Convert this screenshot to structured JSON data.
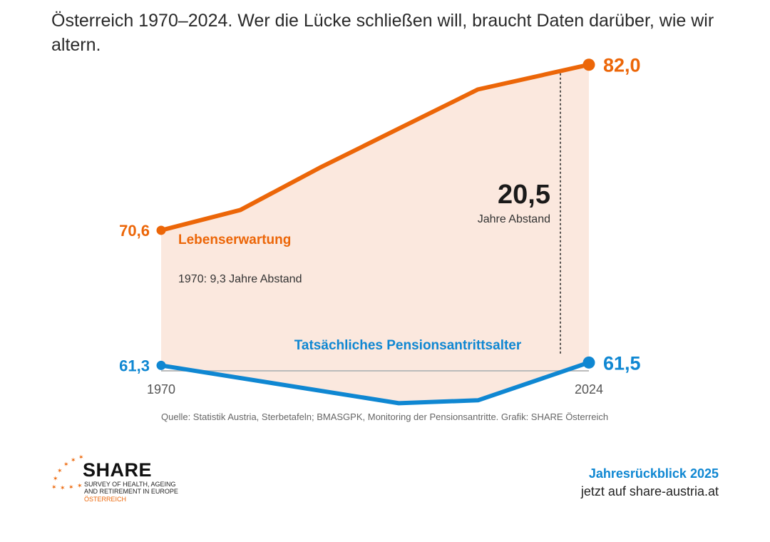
{
  "headline": "Österreich 1970–2024. Wer die Lücke schließen will, braucht Daten darüber, wie wir altern.",
  "chart_data": {
    "type": "line",
    "x_start": 1970,
    "x_end": 2024,
    "ylim": [
      57,
      84
    ],
    "colors": {
      "life": "#ec6608",
      "pension": "#0f87d2",
      "gap_fill": "#fbe8de",
      "axis": "#bbbbbb"
    },
    "series": [
      {
        "key": "life",
        "name": "Lebenserwartung",
        "x": [
          1970,
          1980,
          1990,
          2000,
          2010,
          2024
        ],
        "values": [
          70.6,
          72.0,
          74.9,
          77.6,
          80.3,
          82.0
        ]
      },
      {
        "key": "pension",
        "name": "Tatsächliches Pensionsantrittsalter",
        "x": [
          1970,
          2000,
          2010,
          2024
        ],
        "values": [
          61.3,
          58.7,
          58.9,
          61.5
        ]
      }
    ],
    "end_labels": {
      "life_start": "70,6",
      "life_end": "82,0",
      "pension_start": "61,3",
      "pension_end": "61,5"
    },
    "tick_labels": [
      "1970",
      "2024"
    ],
    "annotations": {
      "gap_1970": "1970: 9,3 Jahre Abstand",
      "gap_2024_value": "20,5",
      "gap_2024_text": "Jahre Abstand"
    }
  },
  "source": "Quelle: Statistik Austria, Sterbetafeln; BMASGPK, Monitoring der Pensionsantritte. Grafik: SHARE Österreich",
  "logo": {
    "word": "SHARE",
    "subtitle": "SURVEY OF HEALTH, AGEING\nAND RETIREMENT IN EUROPE",
    "country": "ÖSTERREICH"
  },
  "cta": {
    "title": "Jahresrückblick 2025",
    "url": "jetzt auf share-austria.at"
  }
}
